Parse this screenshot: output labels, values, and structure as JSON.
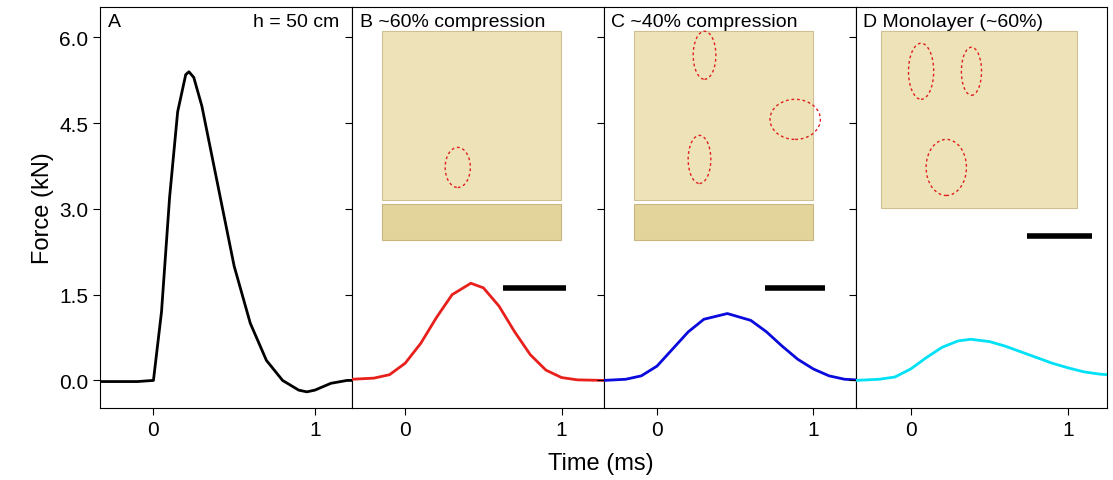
{
  "x_label": "Time (ms)",
  "chart_data": [
    {
      "type": "line",
      "panel": "A",
      "annotations": [
        "h = 50 cm"
      ],
      "y_label": "Force (kN)",
      "x": [
        -0.35,
        -0.1,
        0,
        0.05,
        0.1,
        0.15,
        0.2,
        0.22,
        0.25,
        0.3,
        0.4,
        0.5,
        0.6,
        0.7,
        0.8,
        0.9,
        0.95,
        1.0,
        1.1,
        1.2,
        1.23
      ],
      "values": [
        -0.02,
        -0.02,
        0,
        1.2,
        3.2,
        4.7,
        5.35,
        5.4,
        5.3,
        4.8,
        3.4,
        2.0,
        1.0,
        0.35,
        0.0,
        -0.17,
        -0.2,
        -0.17,
        -0.05,
        0.0,
        0.0
      ],
      "color": "#000000",
      "xlim": [
        -0.33,
        1.23
      ],
      "xticks": [
        0,
        1
      ],
      "ylim": [
        -0.48,
        6.53
      ],
      "yticks": [
        {
          "value": 0,
          "label": "0.0"
        },
        {
          "value": 1.5,
          "label": "1.5"
        },
        {
          "value": 3,
          "label": "3.0"
        },
        {
          "value": 4.5,
          "label": "4.5"
        },
        {
          "value": 6,
          "label": "6.0"
        }
      ]
    },
    {
      "type": "line",
      "panel": "B",
      "title": "~60% compression",
      "tick_labels": "x",
      "x": [
        -0.34,
        -0.2,
        -0.1,
        0,
        0.1,
        0.2,
        0.3,
        0.42,
        0.5,
        0.6,
        0.7,
        0.8,
        0.9,
        1.0,
        1.1,
        1.27
      ],
      "values": [
        0.02,
        0.04,
        0.1,
        0.3,
        0.65,
        1.1,
        1.5,
        1.7,
        1.62,
        1.3,
        0.85,
        0.45,
        0.18,
        0.05,
        0.01,
        0.0
      ],
      "color": "#e8201c",
      "xlim": [
        -0.34,
        1.27
      ],
      "xticks": [
        0,
        1
      ],
      "ylim": [
        -0.48,
        6.53
      ],
      "yticks": [
        0,
        1.5,
        3,
        4.5,
        6
      ]
    },
    {
      "type": "line",
      "panel": "C",
      "title": "~40% compression",
      "tick_labels": "x",
      "x": [
        -0.34,
        -0.2,
        -0.1,
        0,
        0.1,
        0.2,
        0.3,
        0.45,
        0.6,
        0.7,
        0.8,
        0.9,
        1.0,
        1.1,
        1.2,
        1.27
      ],
      "values": [
        0.0,
        0.02,
        0.08,
        0.25,
        0.55,
        0.85,
        1.07,
        1.17,
        1.05,
        0.85,
        0.6,
        0.37,
        0.2,
        0.08,
        0.02,
        0.01
      ],
      "color": "#0a0adc",
      "xlim": [
        -0.34,
        1.27
      ],
      "xticks": [
        0,
        1
      ],
      "ylim": [
        -0.48,
        6.53
      ],
      "yticks": [
        0,
        1.5,
        3,
        4.5,
        6
      ]
    },
    {
      "type": "line",
      "panel": "D",
      "title": "Monolayer (~60%)",
      "tick_labels": "x",
      "x": [
        -0.35,
        -0.2,
        -0.1,
        0,
        0.1,
        0.2,
        0.3,
        0.38,
        0.5,
        0.6,
        0.7,
        0.8,
        0.9,
        1.0,
        1.1,
        1.2,
        1.25
      ],
      "values": [
        0.0,
        0.02,
        0.06,
        0.2,
        0.4,
        0.58,
        0.69,
        0.72,
        0.68,
        0.6,
        0.5,
        0.4,
        0.3,
        0.22,
        0.15,
        0.11,
        0.1
      ],
      "color": "#00e1f5",
      "xlim": [
        -0.35,
        1.25
      ],
      "xticks": [
        0,
        1
      ],
      "ylim": [
        -0.48,
        6.53
      ],
      "yticks": [
        0,
        1.5,
        3,
        4.5,
        6
      ]
    }
  ]
}
